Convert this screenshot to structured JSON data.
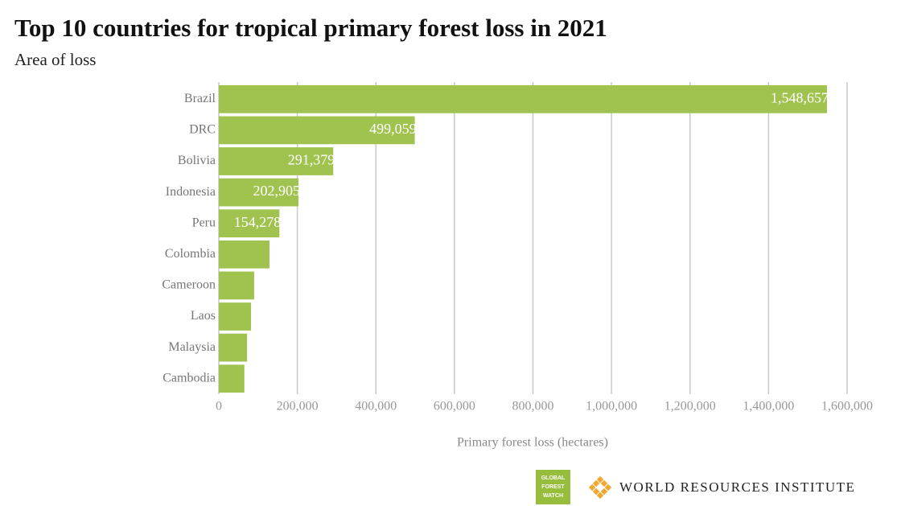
{
  "chart_data": {
    "type": "hbar",
    "title": "Top 10 countries for tropical primary forest loss in 2021",
    "subtitle": "Area of loss",
    "x_label": "Primary forest loss (hectares)",
    "categories": [
      "Brazil",
      "DRC",
      "Bolivia",
      "Indonesia",
      "Peru",
      "Colombia",
      "Cameroon",
      "Laos",
      "Malaysia",
      "Cambodia"
    ],
    "values": [
      1548657,
      499059,
      291379,
      202905,
      154278,
      129000,
      90000,
      82000,
      72000,
      65000
    ],
    "value_labels": [
      "1,548,657",
      "499,059",
      "291,379",
      "202,905",
      "154,278",
      null,
      null,
      null,
      null,
      null
    ],
    "color": "#a0c350",
    "xlim": [
      0,
      1600000
    ],
    "xticks": [
      0,
      {
        "value": 200000,
        "label": "200,000"
      },
      {
        "value": 400000,
        "label": "400,000"
      },
      {
        "value": 600000,
        "label": "600,000"
      },
      {
        "value": 800000,
        "label": "800,000"
      },
      {
        "value": 1000000,
        "label": "1,000,000"
      },
      {
        "value": 1200000,
        "label": "1,200,000"
      },
      {
        "value": 1400000,
        "label": "1,400,000"
      },
      {
        "value": 1600000,
        "label": "1,600,000"
      }
    ],
    "grid": true
  },
  "logos": {
    "gfw": [
      "GLOBAL",
      "FOREST",
      "WATCH"
    ],
    "wri": "WORLD RESOURCES INSTITUTE"
  }
}
